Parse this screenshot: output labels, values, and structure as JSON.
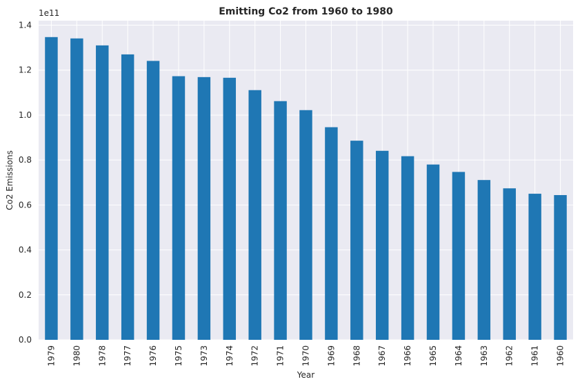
{
  "chart_data": {
    "type": "bar",
    "title": "Emitting Co2 from 1960 to 1980",
    "xlabel": "Year",
    "ylabel": "Co2 Emissions",
    "y_offset_label": "1e11",
    "y_scale": 100000000000.0,
    "ylim": [
      0,
      1.42
    ],
    "yticks": [
      "0.0",
      "0.2",
      "0.4",
      "0.6",
      "0.8",
      "1.0",
      "1.2",
      "1.4"
    ],
    "categories": [
      "1979",
      "1980",
      "1978",
      "1977",
      "1976",
      "1975",
      "1973",
      "1974",
      "1972",
      "1971",
      "1970",
      "1969",
      "1968",
      "1967",
      "1966",
      "1965",
      "1964",
      "1963",
      "1962",
      "1961",
      "1960"
    ],
    "values": [
      1.347,
      1.341,
      1.31,
      1.27,
      1.241,
      1.173,
      1.169,
      1.166,
      1.111,
      1.062,
      1.022,
      0.946,
      0.886,
      0.841,
      0.817,
      0.78,
      0.747,
      0.711,
      0.674,
      0.65,
      0.644
    ],
    "bar_color": "#1f77b4",
    "background_color": "#eaeaf2",
    "grid": true
  }
}
